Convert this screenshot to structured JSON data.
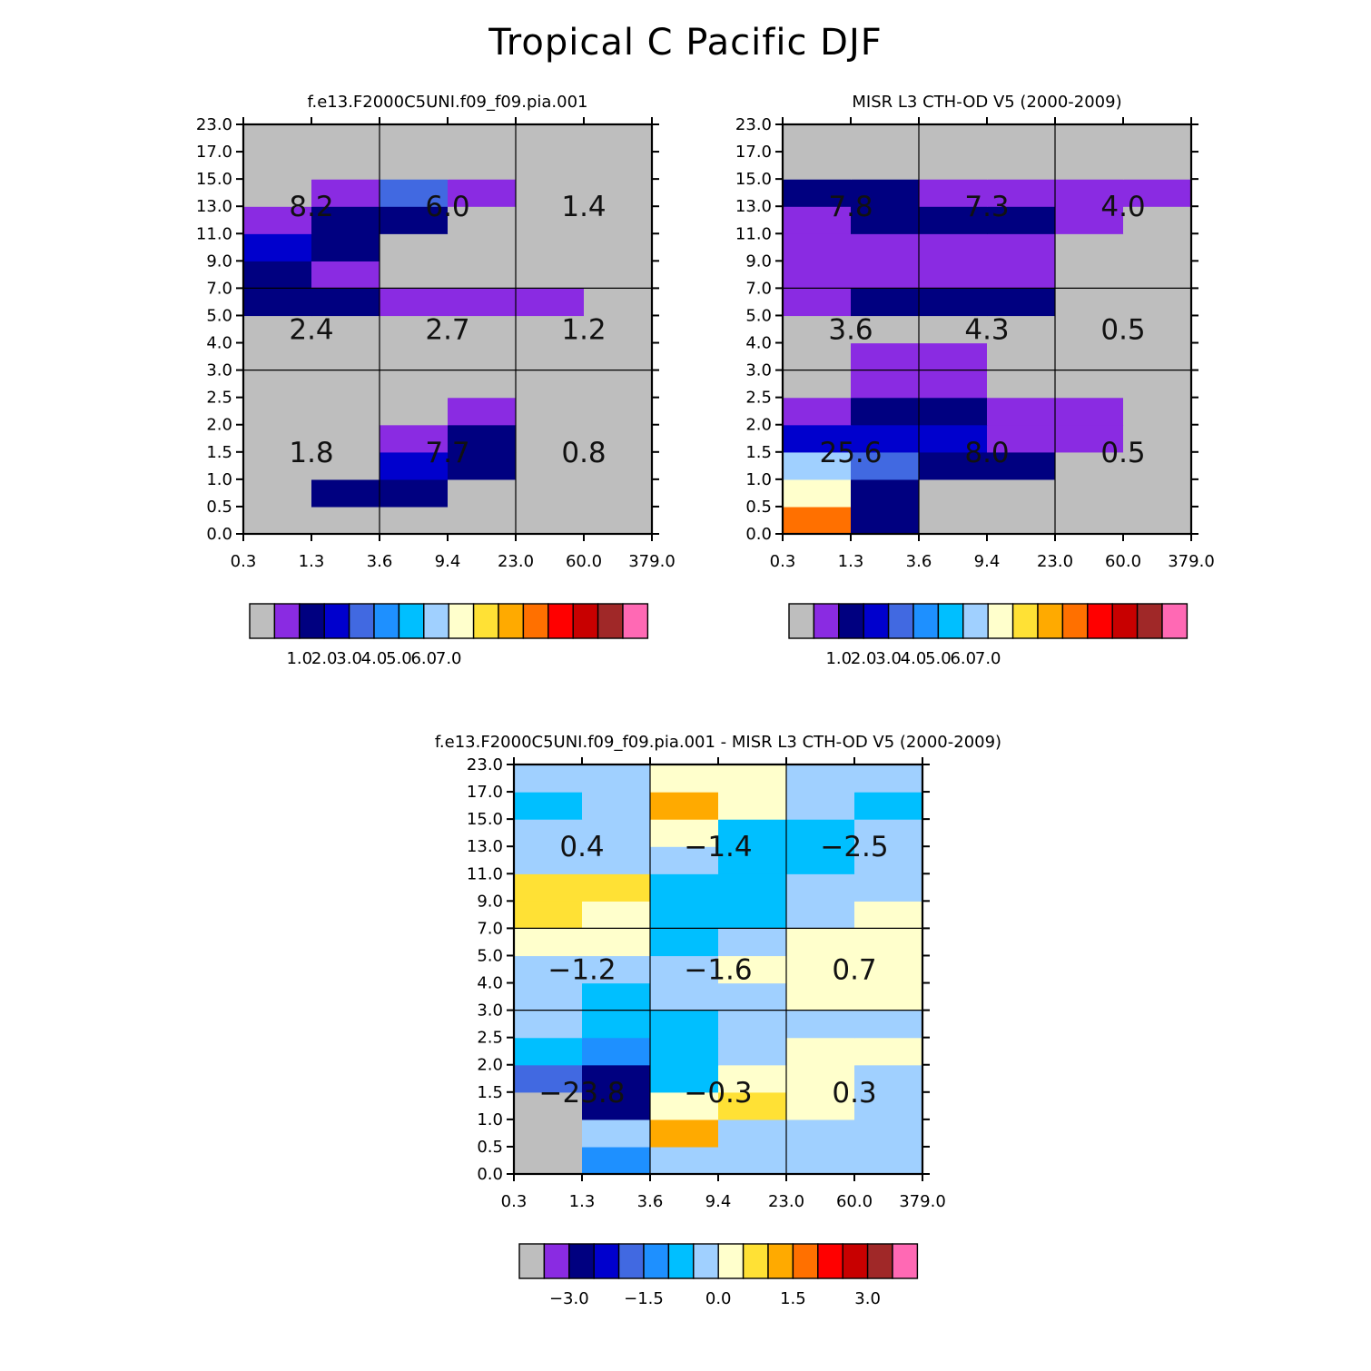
{
  "title": "Tropical C Pacific DJF",
  "chart_data": [
    {
      "type": "heatmap",
      "title": "f.e13.F2000C5UNI.f09_f09.pia.001",
      "x_tick_labels": [
        "0.3",
        "1.3",
        "3.6",
        "9.4",
        "23.0",
        "60.0",
        "379.0"
      ],
      "y_tick_labels": [
        "0.0",
        "0.5",
        "1.0",
        "1.5",
        "2.0",
        "2.5",
        "3.0",
        "4.0",
        "5.0",
        "7.0",
        "9.0",
        "11.0",
        "13.0",
        "15.0",
        "17.0",
        "23.0"
      ],
      "grid_col_bounds": [
        "3.6",
        "23.0"
      ],
      "grid_row_bounds": [
        "3.0",
        "7.0"
      ],
      "cells": [
        [
          0,
          0,
          0,
          0,
          0,
          0
        ],
        [
          0,
          2,
          2,
          0,
          0,
          0
        ],
        [
          0,
          0,
          3,
          2,
          0,
          0
        ],
        [
          0,
          0,
          1,
          2,
          0,
          0
        ],
        [
          0,
          0,
          0,
          1,
          0,
          0
        ],
        [
          0,
          0,
          0,
          0,
          0,
          0
        ],
        [
          0,
          0,
          0,
          0,
          0,
          0
        ],
        [
          0,
          0,
          0,
          0,
          0,
          0
        ],
        [
          2,
          2,
          1,
          1,
          1,
          0
        ],
        [
          2,
          1,
          0,
          0,
          0,
          0
        ],
        [
          3,
          2,
          0,
          0,
          0,
          0
        ],
        [
          1,
          2,
          2,
          0,
          0,
          0
        ],
        [
          0,
          1,
          4,
          1,
          0,
          0
        ],
        [
          0,
          0,
          0,
          0,
          0,
          0
        ],
        [
          0,
          0,
          0,
          0,
          0,
          0
        ]
      ],
      "annotations": [
        {
          "text": "8.2",
          "col": 0,
          "row": 2
        },
        {
          "text": "6.0",
          "col": 1,
          "row": 2
        },
        {
          "text": "1.4",
          "col": 2,
          "row": 2
        },
        {
          "text": "2.4",
          "col": 0,
          "row": 1
        },
        {
          "text": "2.7",
          "col": 1,
          "row": 1
        },
        {
          "text": "1.2",
          "col": 2,
          "row": 1
        },
        {
          "text": "1.8",
          "col": 0,
          "row": 0
        },
        {
          "text": "7.7",
          "col": 1,
          "row": 0
        },
        {
          "text": "0.8",
          "col": 2,
          "row": 0
        }
      ],
      "colorbar": {
        "colors": [
          "#bebebe",
          "#8a2be2",
          "#000080",
          "#0000cd",
          "#4169e1",
          "#1e90ff",
          "#00bfff",
          "#a0d0ff",
          "#ffffcc",
          "#ffe135",
          "#ffaa00",
          "#ff7000",
          "#ff0000",
          "#c80000",
          "#a02828",
          "#ff69b4"
        ],
        "labels": [
          "1.0",
          "2.0",
          "3.0",
          "4.0",
          "5.0",
          "6.0",
          "7.0"
        ],
        "first_label_box": 2
      }
    },
    {
      "type": "heatmap",
      "title": "MISR L3 CTH-OD V5 (2000-2009)",
      "x_tick_labels": [
        "0.3",
        "1.3",
        "3.6",
        "9.4",
        "23.0",
        "60.0",
        "379.0"
      ],
      "y_tick_labels": [
        "0.0",
        "0.5",
        "1.0",
        "1.5",
        "2.0",
        "2.5",
        "3.0",
        "4.0",
        "5.0",
        "7.0",
        "9.0",
        "11.0",
        "13.0",
        "15.0",
        "17.0",
        "23.0"
      ],
      "grid_col_bounds": [
        "3.6",
        "23.0"
      ],
      "grid_row_bounds": [
        "3.0",
        "7.0"
      ],
      "cells": [
        [
          11,
          2,
          0,
          0,
          0,
          0
        ],
        [
          8,
          2,
          0,
          0,
          0,
          0
        ],
        [
          7,
          4,
          2,
          2,
          0,
          0
        ],
        [
          3,
          3,
          3,
          1,
          1,
          0
        ],
        [
          1,
          2,
          2,
          1,
          1,
          0
        ],
        [
          0,
          1,
          1,
          0,
          0,
          0
        ],
        [
          0,
          1,
          1,
          0,
          0,
          0
        ],
        [
          0,
          0,
          0,
          0,
          0,
          0
        ],
        [
          1,
          2,
          2,
          2,
          0,
          0
        ],
        [
          1,
          1,
          1,
          1,
          0,
          0
        ],
        [
          1,
          1,
          1,
          1,
          0,
          0
        ],
        [
          1,
          2,
          2,
          2,
          1,
          0
        ],
        [
          2,
          2,
          1,
          1,
          1,
          1
        ],
        [
          0,
          0,
          0,
          0,
          0,
          0
        ],
        [
          0,
          0,
          0,
          0,
          0,
          0
        ]
      ],
      "annotations": [
        {
          "text": "7.8",
          "col": 0,
          "row": 2
        },
        {
          "text": "7.3",
          "col": 1,
          "row": 2
        },
        {
          "text": "4.0",
          "col": 2,
          "row": 2
        },
        {
          "text": "3.6",
          "col": 0,
          "row": 1
        },
        {
          "text": "4.3",
          "col": 1,
          "row": 1
        },
        {
          "text": "0.5",
          "col": 2,
          "row": 1
        },
        {
          "text": "25.6",
          "col": 0,
          "row": 0
        },
        {
          "text": "8.0",
          "col": 1,
          "row": 0
        },
        {
          "text": "0.5",
          "col": 2,
          "row": 0
        }
      ],
      "colorbar": {
        "colors": [
          "#bebebe",
          "#8a2be2",
          "#000080",
          "#0000cd",
          "#4169e1",
          "#1e90ff",
          "#00bfff",
          "#a0d0ff",
          "#ffffcc",
          "#ffe135",
          "#ffaa00",
          "#ff7000",
          "#ff0000",
          "#c80000",
          "#a02828",
          "#ff69b4"
        ],
        "labels": [
          "1.0",
          "2.0",
          "3.0",
          "4.0",
          "5.0",
          "6.0",
          "7.0"
        ],
        "first_label_box": 2
      }
    },
    {
      "type": "heatmap",
      "title": "f.e13.F2000C5UNI.f09_f09.pia.001 - MISR L3 CTH-OD V5 (2000-2009)",
      "x_tick_labels": [
        "0.3",
        "1.3",
        "3.6",
        "9.4",
        "23.0",
        "60.0",
        "379.0"
      ],
      "y_tick_labels": [
        "0.0",
        "0.5",
        "1.0",
        "1.5",
        "2.0",
        "2.5",
        "3.0",
        "4.0",
        "5.0",
        "7.0",
        "9.0",
        "11.0",
        "13.0",
        "15.0",
        "17.0",
        "23.0"
      ],
      "grid_col_bounds": [
        "3.6",
        "23.0"
      ],
      "grid_row_bounds": [
        "3.0",
        "7.0"
      ],
      "cells": [
        [
          0,
          5,
          7,
          7,
          7,
          7
        ],
        [
          0,
          7,
          10,
          7,
          7,
          7
        ],
        [
          0,
          2,
          8,
          9,
          8,
          7
        ],
        [
          4,
          2,
          6,
          8,
          8,
          7
        ],
        [
          6,
          5,
          6,
          7,
          8,
          8
        ],
        [
          7,
          6,
          6,
          7,
          7,
          7
        ],
        [
          7,
          6,
          7,
          7,
          8,
          8
        ],
        [
          7,
          7,
          7,
          8,
          8,
          8
        ],
        [
          8,
          8,
          6,
          7,
          8,
          8
        ],
        [
          9,
          8,
          6,
          6,
          7,
          8
        ],
        [
          9,
          9,
          6,
          6,
          7,
          7
        ],
        [
          7,
          7,
          7,
          6,
          6,
          7
        ],
        [
          7,
          7,
          8,
          6,
          6,
          7
        ],
        [
          6,
          7,
          10,
          8,
          7,
          6
        ],
        [
          7,
          7,
          8,
          8,
          7,
          7
        ]
      ],
      "annotations": [
        {
          "text": "0.4",
          "col": 0,
          "row": 2
        },
        {
          "text": "−1.4",
          "col": 1,
          "row": 2
        },
        {
          "text": "−2.5",
          "col": 2,
          "row": 2
        },
        {
          "text": "−1.2",
          "col": 0,
          "row": 1
        },
        {
          "text": "−1.6",
          "col": 1,
          "row": 1
        },
        {
          "text": "0.7",
          "col": 2,
          "row": 1
        },
        {
          "text": "−23.8",
          "col": 0,
          "row": 0
        },
        {
          "text": "−0.3",
          "col": 1,
          "row": 0
        },
        {
          "text": "0.3",
          "col": 2,
          "row": 0
        }
      ],
      "colorbar": {
        "colors": [
          "#bebebe",
          "#8a2be2",
          "#000080",
          "#0000cd",
          "#4169e1",
          "#1e90ff",
          "#00bfff",
          "#a0d0ff",
          "#ffffcc",
          "#ffe135",
          "#ffaa00",
          "#ff7000",
          "#ff0000",
          "#c80000",
          "#a02828",
          "#ff69b4"
        ],
        "labels": [
          "−3.0",
          "−1.5",
          "0.0",
          "1.5",
          "3.0"
        ],
        "first_label_box": 2,
        "label_every": 3
      }
    }
  ]
}
